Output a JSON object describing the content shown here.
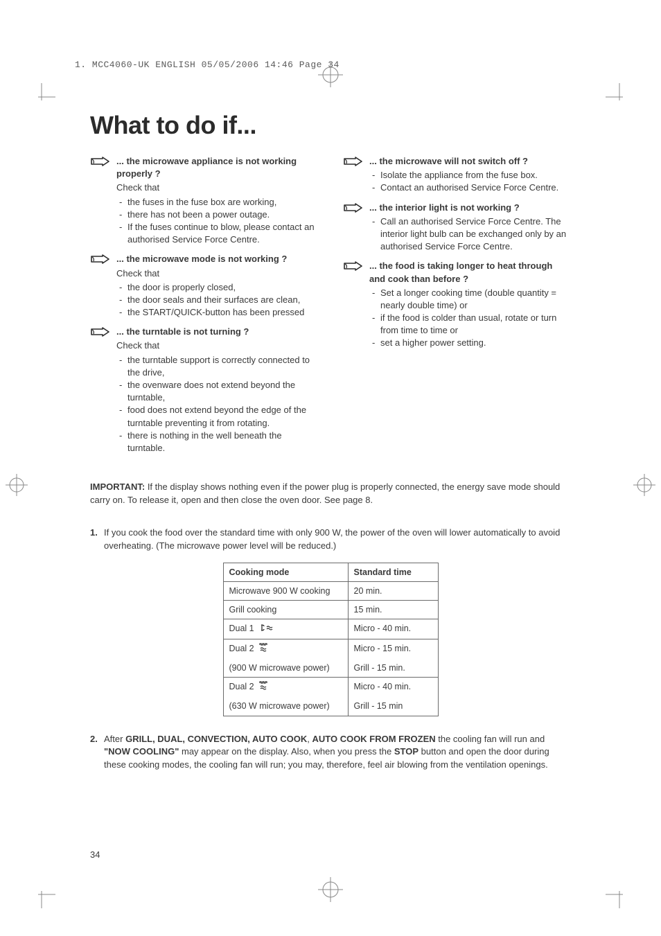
{
  "header_line": "1. MCC4060-UK ENGLISH  05/05/2006  14:46  Page 34",
  "title": "What to do if...",
  "left_column": [
    {
      "title": "...  the microwave appliance is not working properly ?",
      "lead": "Check that",
      "items": [
        "the fuses in the fuse box are working,",
        "there has not been a power outage.",
        "If the fuses continue to blow, please contact an authorised Service Force Centre."
      ]
    },
    {
      "title": "... the microwave mode is not working ?",
      "lead": "Check that",
      "items": [
        "the door is properly closed,",
        "the door seals and their surfaces are clean,",
        "the START/QUICK-button has been pressed"
      ]
    },
    {
      "title": "... the turntable is not turning ?",
      "lead": "Check that",
      "items": [
        "the turntable support is correctly connected to the drive,",
        "the ovenware does not extend beyond the turntable,",
        "food does not extend beyond the edge of the turntable preventing it from rotating.",
        "there is nothing in the well beneath the turntable."
      ]
    }
  ],
  "right_column": [
    {
      "title": "... the microwave will not switch off ?",
      "items": [
        "Isolate the appliance from the fuse box.",
        "Contact an authorised Service Force Centre."
      ]
    },
    {
      "title": "... the interior light is not working ?",
      "items": [
        "Call an authorised Service Force Centre. The interior light bulb can be exchanged only by an authorised Service Force Centre."
      ]
    },
    {
      "title": "... the food is taking longer to heat through and cook than before ?",
      "items": [
        "Set a longer cooking time (double quantity = nearly double time) or",
        "if the food is colder than usual, rotate or turn from time to time or",
        "set a higher power setting."
      ]
    }
  ],
  "important_label": "IMPORTANT:",
  "important_text": " If the display shows nothing even if the power plug is properly connected, the energy save mode should carry on. To release it, open and then close the oven door. See page 8.",
  "note1_num": "1.",
  "note1_text": "If you cook the food over the standard time with only 900 W, the power of the oven will lower automatically to avoid overheating. (The microwave power level will be reduced.)",
  "table": {
    "col1_header": "Cooking mode",
    "col2_header": "Standard time",
    "rows": [
      {
        "mode": "Microwave 900 W cooking",
        "icon": "",
        "time": "20 min."
      },
      {
        "mode": "Grill cooking",
        "icon": "",
        "time": "15 min."
      },
      {
        "mode": "Dual 1",
        "icon": "dual1",
        "time": "Micro - 40 min."
      },
      {
        "mode": "Dual 2",
        "icon": "dual2",
        "sub": "(900 W microwave power)",
        "time": "Micro - 15 min.",
        "time2": "Grill - 15 min."
      },
      {
        "mode": "Dual 2",
        "icon": "dual2",
        "sub": "(630 W microwave power)",
        "time": "Micro - 40 min.",
        "time2": "Grill - 15 min"
      }
    ]
  },
  "note2_num": "2.",
  "note2_pre": "After ",
  "note2_bold1": "GRILL, DUAL, CONVECTION, AUTO COOK",
  "note2_mid1": ", ",
  "note2_bold2": "AUTO COOK FROM FROZEN",
  "note2_mid2": " the cooling fan will run and ",
  "note2_bold3": "\"NOW COOLING\"",
  "note2_mid3": " may appear on the display. Also, when you press the ",
  "note2_bold4": "STOP",
  "note2_end": " button and open the door during these cooking modes, the cooling fan will run; you may, therefore, feel air blowing from the ventilation openings.",
  "page_number": "34"
}
